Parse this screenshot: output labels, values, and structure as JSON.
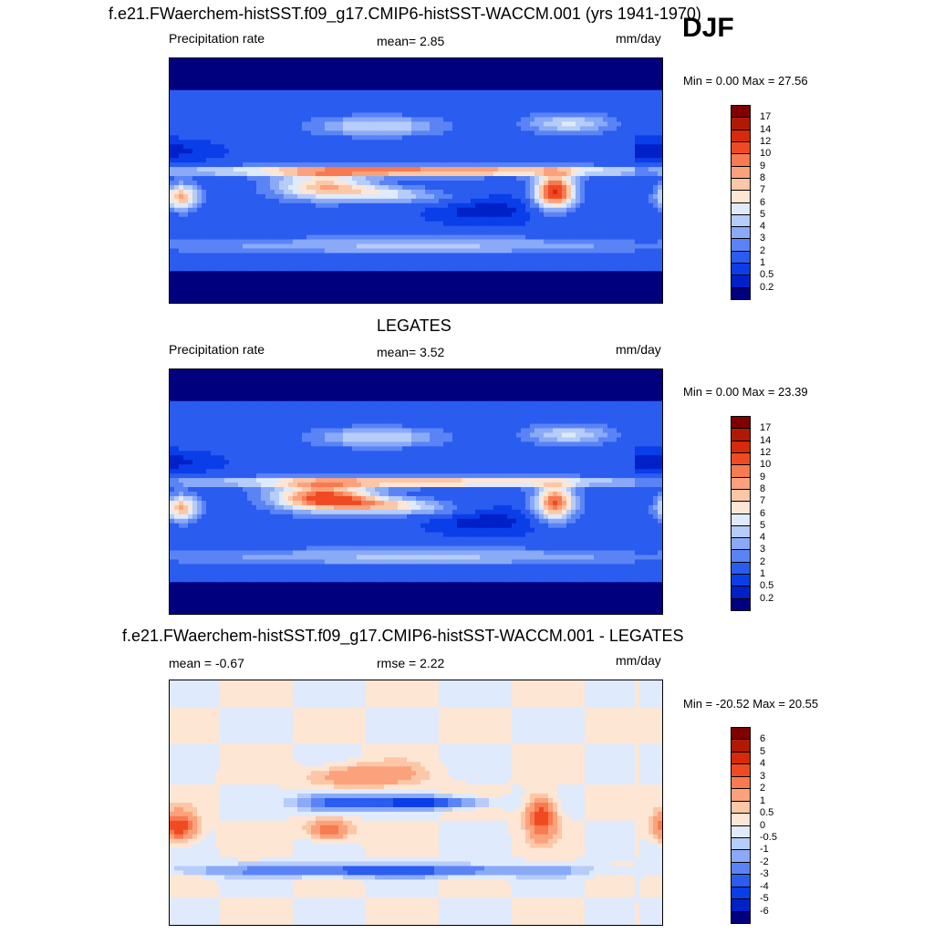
{
  "season": "DJF",
  "colors": {
    "precip": [
      "#00007f",
      "#0020c8",
      "#0a3ee8",
      "#2a5cf0",
      "#5a84f5",
      "#8aaaf7",
      "#b6ccf9",
      "#dfeafc",
      "#fde6d4",
      "#fcc7a6",
      "#fba27c",
      "#f87a50",
      "#f04a22",
      "#d82a0a",
      "#b01a02",
      "#800000"
    ],
    "diff": [
      "#00007f",
      "#0020c8",
      "#0a3ee8",
      "#2a5cf0",
      "#5a84f5",
      "#8aaaf7",
      "#b6ccf9",
      "#dfeafc",
      "#fde6d4",
      "#fcc7a6",
      "#fba27c",
      "#f87a50",
      "#f04a22",
      "#d82a0a",
      "#b01a02",
      "#800000"
    ],
    "coast": "#000000"
  },
  "panels": [
    {
      "id": "model",
      "title": "f.e21.FWaerchem-histSST.f09_g17.CMIP6-histSST-WACCM.001 (yrs 1941-1970)",
      "left_label": "Precipitation rate",
      "center_label": "mean=   2.85",
      "units": "mm/day",
      "minmax": "Min =   0.00 Max =  27.56",
      "colorbar_ticks": [
        "17",
        "14",
        "12",
        "10",
        "9",
        "8",
        "7",
        "6",
        "5",
        "4",
        "3",
        "2",
        "1",
        "0.5",
        "0.2"
      ]
    },
    {
      "id": "obs",
      "title": "LEGATES",
      "left_label": "Precipitation rate",
      "center_label": "mean=   3.52",
      "units": "mm/day",
      "minmax": "Min =   0.00 Max =  23.39",
      "colorbar_ticks": [
        "17",
        "14",
        "12",
        "10",
        "9",
        "8",
        "7",
        "6",
        "5",
        "4",
        "3",
        "2",
        "1",
        "0.5",
        "0.2"
      ]
    },
    {
      "id": "diff",
      "title": "f.e21.FWaerchem-histSST.f09_g17.CMIP6-histSST-WACCM.001 - LEGATES",
      "left_label": "mean =  -0.67",
      "center_label": "rmse =   2.22",
      "units": "mm/day",
      "minmax": "Min = -20.52 Max =  20.55",
      "colorbar_ticks": [
        "6",
        "5",
        "4",
        "3",
        "2",
        "1",
        "0.5",
        "0",
        "-0.5",
        "-1",
        "-2",
        "-3",
        "-4",
        "-5",
        "-6"
      ]
    }
  ],
  "chart_data": [
    {
      "type": "heatmap",
      "title": "f.e21.FWaerchem-histSST.f09_g17.CMIP6-histSST-WACCM.001 (yrs 1941-1970)",
      "variable": "Precipitation rate",
      "units": "mm/day",
      "mean": 2.85,
      "min": 0.0,
      "max": 27.56,
      "contour_levels": [
        0.2,
        0.5,
        1,
        2,
        3,
        4,
        5,
        6,
        7,
        8,
        9,
        10,
        12,
        14,
        17
      ],
      "x_range_lon": [
        0,
        360
      ],
      "y_range_lat": [
        -90,
        90
      ]
    },
    {
      "type": "heatmap",
      "title": "LEGATES",
      "variable": "Precipitation rate",
      "units": "mm/day",
      "mean": 3.52,
      "min": 0.0,
      "max": 23.39,
      "contour_levels": [
        0.2,
        0.5,
        1,
        2,
        3,
        4,
        5,
        6,
        7,
        8,
        9,
        10,
        12,
        14,
        17
      ],
      "x_range_lon": [
        0,
        360
      ],
      "y_range_lat": [
        -90,
        90
      ]
    },
    {
      "type": "heatmap",
      "title": "f.e21.FWaerchem-histSST.f09_g17.CMIP6-histSST-WACCM.001 - LEGATES",
      "units": "mm/day",
      "mean": -0.67,
      "rmse": 2.22,
      "min": -20.52,
      "max": 20.55,
      "contour_levels": [
        -6,
        -5,
        -4,
        -3,
        -2,
        -1,
        -0.5,
        0,
        0.5,
        1,
        2,
        3,
        4,
        5,
        6
      ],
      "x_range_lon": [
        0,
        360
      ],
      "y_range_lat": [
        -90,
        90
      ]
    }
  ]
}
